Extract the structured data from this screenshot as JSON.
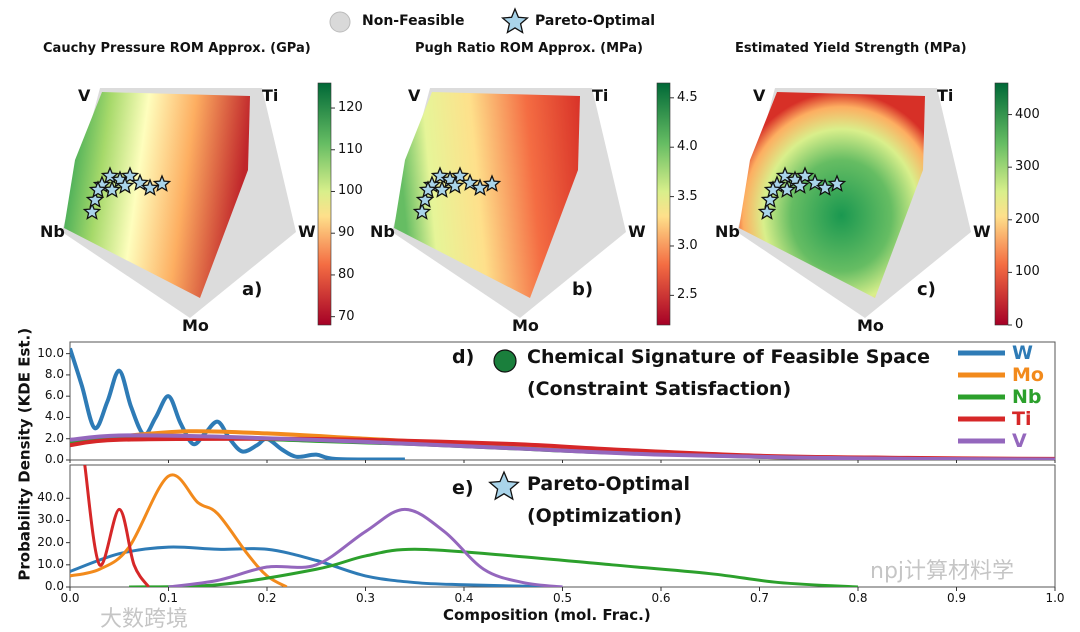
{
  "legend_top": {
    "nonfeasible": "Non-Feasible",
    "pareto": "Pareto-Optimal"
  },
  "watermarks": {
    "left": "大数跨境",
    "right": "npj计算材料学"
  },
  "chart_data": [
    {
      "type": "heatmap",
      "panel": "a)",
      "title": "Cauchy Pressure ROM Approx. (GPa)",
      "vertices": [
        "V",
        "Ti",
        "W",
        "Mo",
        "Nb"
      ],
      "colorbar_ticks": [
        "120",
        "110",
        "100",
        "90",
        "80",
        "70"
      ],
      "colorbar_range": [
        68,
        126
      ],
      "colormap": "RdYlGn"
    },
    {
      "type": "heatmap",
      "panel": "b)",
      "title": "Pugh Ratio ROM Approx. (MPa)",
      "vertices": [
        "V",
        "Ti",
        "W",
        "Mo",
        "Nb"
      ],
      "colorbar_ticks": [
        "4.5",
        "4.0",
        "3.5",
        "3.0",
        "2.5"
      ],
      "colorbar_range": [
        2.2,
        4.65
      ],
      "colormap": "RdYlGn"
    },
    {
      "type": "heatmap",
      "panel": "c)",
      "title": "Estimated Yield Strength (MPa)",
      "vertices": [
        "V",
        "Ti",
        "W",
        "Mo",
        "Nb"
      ],
      "colorbar_ticks": [
        "400",
        "300",
        "200",
        "100",
        "0"
      ],
      "colorbar_range": [
        0,
        460
      ],
      "colormap": "RdYlGn"
    },
    {
      "type": "line",
      "panel": "d)",
      "title": "Chemical Signature of Feasible Space",
      "subtitle": "(Constraint Satisfaction)",
      "ylim": [
        0,
        11
      ],
      "yticks": [
        "10.0",
        "8.0",
        "6.0",
        "4.0",
        "2.0",
        "0.0"
      ],
      "series": [
        {
          "name": "W",
          "color": "#2e7bb6",
          "x": [
            0,
            0.012,
            0.025,
            0.038,
            0.05,
            0.062,
            0.075,
            0.087,
            0.1,
            0.112,
            0.125,
            0.137,
            0.15,
            0.162,
            0.175,
            0.19,
            0.2,
            0.215,
            0.23,
            0.25,
            0.27,
            0.34
          ],
          "y": [
            10.5,
            7,
            3,
            5.5,
            8.4,
            5,
            2.4,
            4,
            6,
            3.5,
            1.5,
            2.5,
            3.6,
            2,
            0.8,
            1.4,
            2,
            1,
            0.3,
            0.5,
            0.1,
            0.05
          ]
        },
        {
          "name": "Mo",
          "color": "#f28a1c",
          "x": [
            0,
            0.05,
            0.12,
            0.2,
            0.3,
            0.4,
            0.5,
            0.6,
            0.7,
            0.8,
            1
          ],
          "y": [
            1.6,
            2.2,
            2.7,
            2.5,
            2,
            1.5,
            1,
            0.6,
            0.3,
            0.15,
            0.05
          ]
        },
        {
          "name": "Nb",
          "color": "#2ca02c",
          "x": [
            0,
            0.05,
            0.15,
            0.25,
            0.35,
            0.45,
            0.55,
            0.7,
            0.85,
            1
          ],
          "y": [
            1.7,
            2.1,
            2.1,
            1.8,
            1.5,
            1.1,
            0.7,
            0.3,
            0.1,
            0.05
          ]
        },
        {
          "name": "Ti",
          "color": "#d62728",
          "x": [
            0,
            0.05,
            0.2,
            0.3,
            0.45,
            0.55,
            0.7,
            0.85,
            1
          ],
          "y": [
            1.4,
            1.9,
            2,
            1.9,
            1.5,
            1,
            0.4,
            0.2,
            0.1
          ]
        },
        {
          "name": "V",
          "color": "#9467bd",
          "x": [
            0,
            0.05,
            0.15,
            0.3,
            0.45,
            0.6,
            0.8,
            1
          ],
          "y": [
            1.9,
            2.3,
            2.2,
            1.7,
            1.1,
            0.5,
            0.15,
            0.05
          ]
        }
      ]
    },
    {
      "type": "line",
      "panel": "e)",
      "title": "Pareto-Optimal",
      "subtitle": "(Optimization)",
      "xlabel": "Composition (mol. Frac.)",
      "ylabel": "Probability Density (KDE Est.)",
      "xlim": [
        0,
        1
      ],
      "ylim": [
        0,
        55
      ],
      "xticks": [
        "0.0",
        "0.1",
        "0.2",
        "0.3",
        "0.4",
        "0.5",
        "0.6",
        "0.7",
        "0.8",
        "0.9",
        "1.0"
      ],
      "yticks": [
        "40.0",
        "30.0",
        "20.0",
        "10.0",
        "0.0"
      ],
      "series": [
        {
          "name": "W",
          "color": "#2e7bb6",
          "x": [
            0,
            0.05,
            0.1,
            0.15,
            0.2,
            0.25,
            0.3,
            0.35,
            0.4,
            0.5
          ],
          "y": [
            7,
            15,
            18,
            17,
            17,
            12,
            5,
            2,
            1,
            0
          ]
        },
        {
          "name": "Mo",
          "color": "#f28a1c",
          "x": [
            0,
            0.03,
            0.06,
            0.1,
            0.13,
            0.15,
            0.18,
            0.2,
            0.22
          ],
          "y": [
            5,
            8,
            18,
            50,
            38,
            33,
            15,
            5,
            0
          ]
        },
        {
          "name": "Nb",
          "color": "#2ca02c",
          "x": [
            0.06,
            0.15,
            0.25,
            0.3,
            0.35,
            0.45,
            0.55,
            0.65,
            0.72,
            0.8
          ],
          "y": [
            0,
            1,
            8,
            14,
            17,
            14,
            10,
            6,
            2,
            0
          ]
        },
        {
          "name": "Ti",
          "color": "#d62728",
          "x": [
            0.015,
            0.03,
            0.05,
            0.065,
            0.08
          ],
          "y": [
            55,
            10,
            35,
            10,
            0
          ]
        },
        {
          "name": "V",
          "color": "#9467bd",
          "x": [
            0.1,
            0.15,
            0.2,
            0.25,
            0.3,
            0.34,
            0.38,
            0.42,
            0.46,
            0.5
          ],
          "y": [
            0,
            3,
            9,
            10,
            25,
            35,
            25,
            8,
            2,
            0
          ]
        }
      ]
    }
  ]
}
